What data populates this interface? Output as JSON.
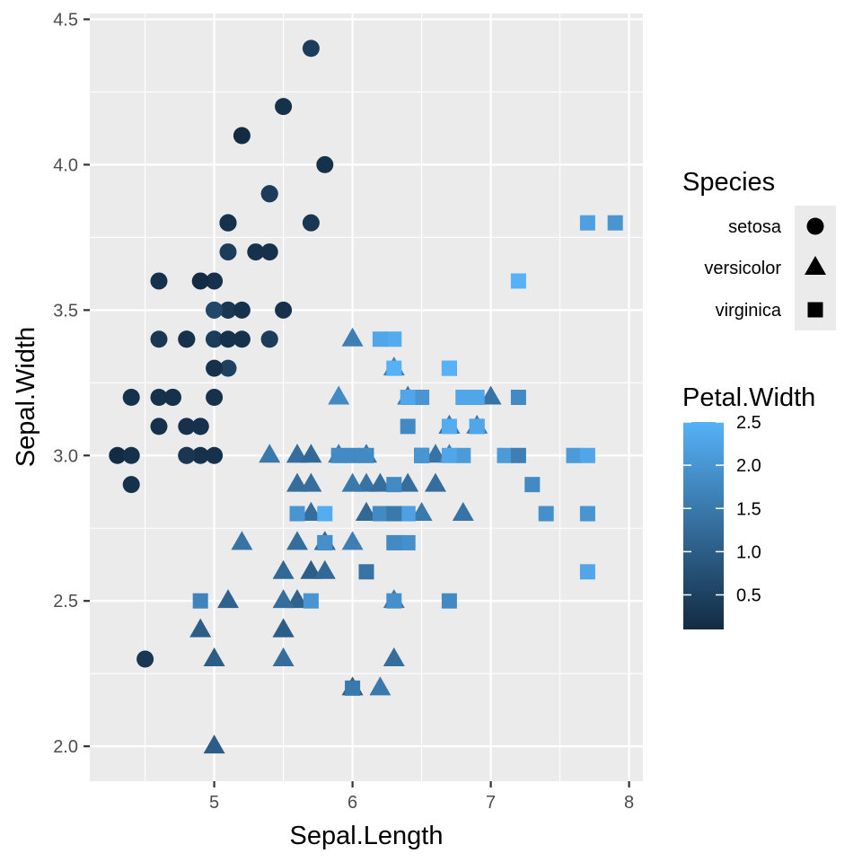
{
  "chart_data": {
    "type": "scatter",
    "xlabel": "Sepal.Length",
    "ylabel": "Sepal.Width",
    "xlim": [
      4.1,
      8.1
    ],
    "ylim": [
      1.88,
      4.52
    ],
    "x_ticks": [
      5,
      6,
      7,
      8
    ],
    "y_ticks": [
      2.0,
      2.5,
      3.0,
      3.5,
      4.0,
      4.5
    ],
    "x_tick_labels": [
      "5",
      "6",
      "7",
      "8"
    ],
    "y_tick_labels": [
      "2.0",
      "2.5",
      "3.0",
      "3.5",
      "4.0",
      "4.5"
    ],
    "grid": true,
    "legend_position": "right",
    "shape_legend": {
      "title": "Species",
      "entries": [
        {
          "label": "setosa",
          "shape": "circle"
        },
        {
          "label": "versicolor",
          "shape": "triangle"
        },
        {
          "label": "virginica",
          "shape": "square"
        }
      ]
    },
    "color_legend": {
      "title": "Petal.Width",
      "range": [
        0.1,
        2.5
      ],
      "breaks": [
        0.5,
        1.0,
        1.5,
        2.0,
        2.5
      ],
      "break_labels": [
        "0.5",
        "1.0",
        "1.5",
        "2.0",
        "2.5"
      ],
      "low_color": "#132B43",
      "high_color": "#56B1F7"
    },
    "colors": {
      "panel": "#EBEBEB",
      "grid_major": "#FFFFFF",
      "tick": "#333333"
    },
    "series": [
      {
        "name": "setosa",
        "shape": "circle",
        "points": [
          [
            5.1,
            3.5,
            0.2
          ],
          [
            4.9,
            3.0,
            0.2
          ],
          [
            4.7,
            3.2,
            0.2
          ],
          [
            4.6,
            3.1,
            0.2
          ],
          [
            5.0,
            3.6,
            0.2
          ],
          [
            5.4,
            3.9,
            0.4
          ],
          [
            4.6,
            3.4,
            0.3
          ],
          [
            5.0,
            3.4,
            0.2
          ],
          [
            4.4,
            2.9,
            0.2
          ],
          [
            4.9,
            3.1,
            0.1
          ],
          [
            5.4,
            3.7,
            0.2
          ],
          [
            4.8,
            3.4,
            0.2
          ],
          [
            4.8,
            3.0,
            0.1
          ],
          [
            4.3,
            3.0,
            0.1
          ],
          [
            5.8,
            4.0,
            0.2
          ],
          [
            5.7,
            4.4,
            0.4
          ],
          [
            5.4,
            3.9,
            0.4
          ],
          [
            5.1,
            3.5,
            0.3
          ],
          [
            5.7,
            3.8,
            0.3
          ],
          [
            5.1,
            3.8,
            0.3
          ],
          [
            5.4,
            3.4,
            0.2
          ],
          [
            5.1,
            3.7,
            0.4
          ],
          [
            4.6,
            3.6,
            0.2
          ],
          [
            5.1,
            3.3,
            0.5
          ],
          [
            4.8,
            3.4,
            0.2
          ],
          [
            5.0,
            3.0,
            0.2
          ],
          [
            5.0,
            3.4,
            0.4
          ],
          [
            5.2,
            3.5,
            0.2
          ],
          [
            5.2,
            3.4,
            0.2
          ],
          [
            4.7,
            3.2,
            0.2
          ],
          [
            4.8,
            3.1,
            0.2
          ],
          [
            5.4,
            3.4,
            0.4
          ],
          [
            5.2,
            4.1,
            0.1
          ],
          [
            5.5,
            4.2,
            0.2
          ],
          [
            4.9,
            3.1,
            0.2
          ],
          [
            5.0,
            3.2,
            0.2
          ],
          [
            5.5,
            3.5,
            0.2
          ],
          [
            4.9,
            3.6,
            0.1
          ],
          [
            4.4,
            3.0,
            0.2
          ],
          [
            5.1,
            3.4,
            0.2
          ],
          [
            5.0,
            3.5,
            0.3
          ],
          [
            4.5,
            2.3,
            0.3
          ],
          [
            4.4,
            3.2,
            0.2
          ],
          [
            5.0,
            3.5,
            0.6
          ],
          [
            5.1,
            3.8,
            0.4
          ],
          [
            4.8,
            3.0,
            0.3
          ],
          [
            5.1,
            3.8,
            0.2
          ],
          [
            4.6,
            3.2,
            0.2
          ],
          [
            5.3,
            3.7,
            0.2
          ],
          [
            5.0,
            3.3,
            0.2
          ]
        ]
      },
      {
        "name": "versicolor",
        "shape": "triangle",
        "points": [
          [
            7.0,
            3.2,
            1.4
          ],
          [
            6.4,
            3.2,
            1.5
          ],
          [
            6.9,
            3.1,
            1.5
          ],
          [
            5.5,
            2.3,
            1.3
          ],
          [
            6.5,
            2.8,
            1.5
          ],
          [
            5.7,
            2.8,
            1.3
          ],
          [
            6.3,
            3.3,
            1.6
          ],
          [
            4.9,
            2.4,
            1.0
          ],
          [
            6.6,
            2.9,
            1.3
          ],
          [
            5.2,
            2.7,
            1.4
          ],
          [
            5.0,
            2.0,
            1.0
          ],
          [
            5.9,
            3.0,
            1.5
          ],
          [
            6.0,
            2.2,
            1.0
          ],
          [
            6.1,
            2.9,
            1.4
          ],
          [
            5.6,
            2.9,
            1.3
          ],
          [
            6.7,
            3.1,
            1.4
          ],
          [
            5.6,
            3.0,
            1.5
          ],
          [
            5.8,
            2.7,
            1.0
          ],
          [
            6.2,
            2.2,
            1.5
          ],
          [
            5.6,
            2.5,
            1.1
          ],
          [
            5.9,
            3.2,
            1.8
          ],
          [
            6.1,
            2.8,
            1.3
          ],
          [
            6.3,
            2.5,
            1.5
          ],
          [
            6.1,
            2.8,
            1.2
          ],
          [
            6.4,
            2.9,
            1.3
          ],
          [
            6.6,
            3.0,
            1.4
          ],
          [
            6.8,
            2.8,
            1.4
          ],
          [
            6.7,
            3.0,
            1.7
          ],
          [
            6.0,
            2.9,
            1.5
          ],
          [
            5.7,
            2.6,
            1.0
          ],
          [
            5.5,
            2.4,
            1.1
          ],
          [
            5.5,
            2.4,
            1.0
          ],
          [
            5.8,
            2.7,
            1.2
          ],
          [
            6.0,
            2.7,
            1.6
          ],
          [
            5.4,
            3.0,
            1.5
          ],
          [
            6.0,
            3.4,
            1.6
          ],
          [
            6.7,
            3.1,
            1.5
          ],
          [
            6.3,
            2.3,
            1.3
          ],
          [
            5.6,
            3.0,
            1.3
          ],
          [
            5.5,
            2.5,
            1.3
          ],
          [
            5.5,
            2.6,
            1.2
          ],
          [
            6.1,
            3.0,
            1.4
          ],
          [
            5.8,
            2.6,
            1.2
          ],
          [
            5.0,
            2.3,
            1.0
          ],
          [
            5.6,
            2.7,
            1.3
          ],
          [
            5.7,
            3.0,
            1.2
          ],
          [
            5.7,
            2.9,
            1.3
          ],
          [
            6.2,
            2.9,
            1.3
          ],
          [
            5.1,
            2.5,
            1.1
          ],
          [
            5.7,
            2.8,
            1.3
          ]
        ]
      },
      {
        "name": "virginica",
        "shape": "square",
        "points": [
          [
            6.3,
            3.3,
            2.5
          ],
          [
            5.8,
            2.7,
            1.9
          ],
          [
            7.1,
            3.0,
            2.1
          ],
          [
            6.3,
            2.9,
            1.8
          ],
          [
            6.5,
            3.0,
            2.2
          ],
          [
            7.6,
            3.0,
            2.1
          ],
          [
            4.9,
            2.5,
            1.7
          ],
          [
            7.3,
            2.9,
            1.8
          ],
          [
            6.7,
            2.5,
            1.8
          ],
          [
            7.2,
            3.6,
            2.5
          ],
          [
            6.5,
            3.2,
            2.0
          ],
          [
            6.4,
            2.7,
            1.9
          ],
          [
            6.8,
            3.0,
            2.1
          ],
          [
            5.7,
            2.5,
            2.0
          ],
          [
            5.8,
            2.8,
            2.4
          ],
          [
            6.4,
            3.2,
            2.3
          ],
          [
            6.5,
            3.0,
            1.8
          ],
          [
            7.7,
            3.8,
            2.2
          ],
          [
            7.7,
            2.6,
            2.3
          ],
          [
            6.0,
            2.2,
            1.5
          ],
          [
            6.9,
            3.2,
            2.3
          ],
          [
            5.6,
            2.8,
            2.0
          ],
          [
            7.7,
            2.8,
            2.0
          ],
          [
            6.3,
            2.7,
            1.8
          ],
          [
            6.7,
            3.3,
            2.1
          ],
          [
            7.2,
            3.2,
            1.8
          ],
          [
            6.2,
            2.8,
            1.8
          ],
          [
            6.1,
            3.0,
            1.8
          ],
          [
            6.4,
            2.8,
            2.1
          ],
          [
            7.2,
            3.0,
            1.6
          ],
          [
            7.4,
            2.8,
            1.9
          ],
          [
            7.9,
            3.8,
            2.0
          ],
          [
            6.4,
            2.8,
            2.2
          ],
          [
            6.3,
            2.8,
            1.5
          ],
          [
            6.1,
            2.6,
            1.4
          ],
          [
            7.7,
            3.0,
            2.3
          ],
          [
            6.3,
            3.4,
            2.4
          ],
          [
            6.4,
            3.1,
            1.8
          ],
          [
            6.0,
            3.0,
            1.8
          ],
          [
            6.9,
            3.1,
            2.1
          ],
          [
            6.7,
            3.1,
            2.4
          ],
          [
            6.9,
            3.1,
            2.3
          ],
          [
            5.8,
            2.7,
            1.9
          ],
          [
            6.8,
            3.2,
            2.3
          ],
          [
            6.7,
            3.3,
            2.5
          ],
          [
            6.7,
            3.0,
            2.3
          ],
          [
            6.3,
            2.5,
            1.9
          ],
          [
            6.5,
            3.0,
            2.0
          ],
          [
            6.2,
            3.4,
            2.3
          ],
          [
            5.9,
            3.0,
            1.8
          ]
        ]
      }
    ]
  }
}
